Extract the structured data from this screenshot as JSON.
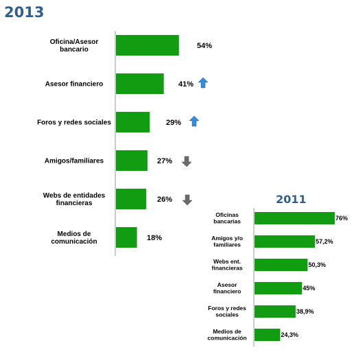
{
  "chart_data": [
    {
      "type": "bar",
      "orientation": "horizontal",
      "title": "2013",
      "categories": [
        [
          "Oficina/Asesor",
          "bancario"
        ],
        [
          "Asesor financiero"
        ],
        [
          "Foros y redes sociales"
        ],
        [
          "Amigos/familiares"
        ],
        [
          "Webs de entidades",
          "financieras"
        ],
        [
          "Medios de",
          "comunicación"
        ]
      ],
      "values": [
        54,
        41,
        29,
        27,
        26,
        18
      ],
      "value_labels": [
        "54%",
        "41%",
        "29%",
        "27%",
        "26%",
        "18%"
      ],
      "trend": [
        "none",
        "up",
        "up",
        "down",
        "down",
        "none"
      ],
      "colors": {
        "bar": "#129c12",
        "up": "#2e8fe6",
        "down": "#6b6b6b"
      }
    },
    {
      "type": "bar",
      "orientation": "horizontal",
      "title": "2011",
      "categories": [
        [
          "Oficinas",
          "bancarias"
        ],
        [
          "Amigos y/o",
          "familiares"
        ],
        [
          "Webs ent.",
          "financieras"
        ],
        [
          "Asesor",
          "financiero"
        ],
        [
          "Foros y redes",
          "sociales"
        ],
        [
          "Medios de",
          "comunicación"
        ]
      ],
      "values": [
        76,
        57.2,
        50.3,
        45,
        38.9,
        24.3
      ],
      "value_labels": [
        "76%",
        "57,2%",
        "50,3%",
        "45%",
        "38,9%",
        "24,3%"
      ],
      "colors": {
        "bar": "#129c12"
      }
    }
  ]
}
